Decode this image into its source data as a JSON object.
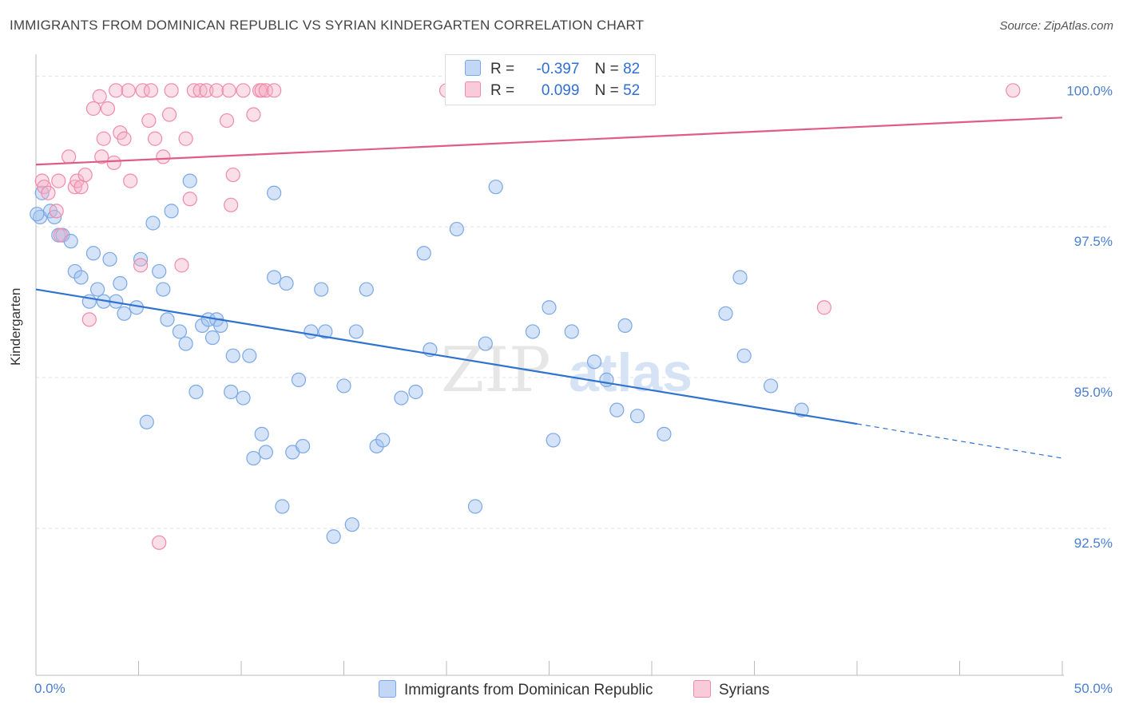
{
  "title": "IMMIGRANTS FROM DOMINICAN REPUBLIC VS SYRIAN KINDERGARTEN CORRELATION CHART",
  "source": "Source: ZipAtlas.com",
  "watermark": "ZIPatlas",
  "legend": {
    "rows": [
      {
        "r_label": "R =",
        "r_value": "-0.397",
        "n_label": "N =",
        "n_value": "82"
      },
      {
        "r_label": "R =",
        "r_value": "0.099",
        "n_label": "N =",
        "n_value": "52"
      }
    ]
  },
  "chart_data": {
    "type": "scatter",
    "xlabel": "",
    "ylabel": "Kindergarten",
    "xlim": [
      0,
      50
    ],
    "ylim": [
      90.3,
      100.6
    ],
    "x_tick_labels": [
      {
        "value": 0,
        "label": "0.0%"
      },
      {
        "value": 50,
        "label": "50.0%"
      }
    ],
    "y_tick_labels": [
      {
        "value": 100.0,
        "label": "100.0%"
      },
      {
        "value": 97.5,
        "label": "97.5%"
      },
      {
        "value": 95.0,
        "label": "95.0%"
      },
      {
        "value": 92.5,
        "label": "92.5%"
      }
    ],
    "grid": true,
    "colors": {
      "dominican": "#7aa8e6",
      "syrian": "#f08aaa",
      "dominican_line": "#2f72d0",
      "syrian_line": "#e05c87",
      "tick": "#4a7fd0"
    },
    "series": [
      {
        "name": "Immigrants from Dominican Republic",
        "trend": {
          "x_start": 0,
          "y_start": 96.7,
          "x_end": 40,
          "y_end": 94.47,
          "dash_to_x": 50,
          "dash_to_y": 93.9
        },
        "points": [
          [
            0.2,
            97.9
          ],
          [
            0.3,
            98.3
          ],
          [
            0.7,
            98.0
          ],
          [
            0.9,
            97.9
          ],
          [
            1.1,
            97.6
          ],
          [
            1.3,
            97.6
          ],
          [
            1.7,
            97.5
          ],
          [
            1.9,
            97.0
          ],
          [
            2.2,
            96.9
          ],
          [
            2.6,
            96.5
          ],
          [
            2.8,
            97.3
          ],
          [
            3.0,
            96.7
          ],
          [
            3.3,
            96.5
          ],
          [
            3.6,
            97.2
          ],
          [
            3.9,
            96.5
          ],
          [
            4.1,
            96.8
          ],
          [
            4.3,
            96.3
          ],
          [
            4.9,
            96.4
          ],
          [
            5.1,
            97.2
          ],
          [
            5.4,
            94.5
          ],
          [
            5.7,
            97.8
          ],
          [
            6.0,
            97.0
          ],
          [
            6.2,
            96.7
          ],
          [
            6.4,
            96.2
          ],
          [
            6.6,
            98.0
          ],
          [
            7.0,
            96.0
          ],
          [
            7.3,
            95.8
          ],
          [
            7.5,
            98.5
          ],
          [
            7.8,
            95.0
          ],
          [
            8.1,
            96.1
          ],
          [
            8.4,
            96.2
          ],
          [
            8.6,
            95.9
          ],
          [
            8.8,
            96.2
          ],
          [
            9.0,
            96.1
          ],
          [
            9.5,
            95.0
          ],
          [
            9.6,
            95.6
          ],
          [
            10.1,
            94.9
          ],
          [
            10.4,
            95.6
          ],
          [
            10.6,
            93.9
          ],
          [
            11.0,
            94.3
          ],
          [
            11.2,
            94.0
          ],
          [
            11.6,
            96.9
          ],
          [
            11.6,
            98.3
          ],
          [
            12.0,
            93.1
          ],
          [
            12.2,
            96.8
          ],
          [
            12.5,
            94.0
          ],
          [
            12.8,
            95.2
          ],
          [
            13.0,
            94.1
          ],
          [
            13.4,
            96.0
          ],
          [
            13.9,
            96.7
          ],
          [
            14.1,
            96.0
          ],
          [
            14.5,
            92.6
          ],
          [
            15.0,
            95.1
          ],
          [
            15.4,
            92.8
          ],
          [
            15.6,
            96.0
          ],
          [
            16.1,
            96.7
          ],
          [
            16.6,
            94.1
          ],
          [
            16.9,
            94.2
          ],
          [
            17.8,
            94.9
          ],
          [
            18.5,
            95.0
          ],
          [
            18.9,
            97.3
          ],
          [
            19.2,
            95.7
          ],
          [
            20.5,
            97.7
          ],
          [
            21.4,
            93.1
          ],
          [
            21.9,
            95.8
          ],
          [
            22.4,
            98.4
          ],
          [
            24.2,
            96.0
          ],
          [
            25.0,
            96.4
          ],
          [
            25.2,
            94.2
          ],
          [
            26.1,
            96.0
          ],
          [
            27.2,
            95.5
          ],
          [
            27.8,
            95.2
          ],
          [
            28.3,
            94.7
          ],
          [
            28.7,
            96.1
          ],
          [
            29.3,
            94.6
          ],
          [
            30.6,
            94.3
          ],
          [
            33.6,
            96.3
          ],
          [
            34.3,
            96.9
          ],
          [
            34.5,
            95.6
          ],
          [
            35.8,
            95.1
          ],
          [
            37.3,
            94.7
          ],
          [
            0.05,
            97.95
          ]
        ]
      },
      {
        "name": "Syrians",
        "trend": {
          "x_start": 0,
          "y_start": 98.77,
          "x_end": 50,
          "y_end": 99.55
        },
        "points": [
          [
            0.3,
            98.5
          ],
          [
            0.4,
            98.4
          ],
          [
            0.6,
            98.3
          ],
          [
            1.0,
            98.0
          ],
          [
            1.1,
            98.5
          ],
          [
            1.2,
            97.6
          ],
          [
            1.6,
            98.9
          ],
          [
            1.9,
            98.4
          ],
          [
            2.0,
            98.5
          ],
          [
            2.2,
            98.4
          ],
          [
            2.4,
            98.6
          ],
          [
            2.6,
            96.2
          ],
          [
            2.8,
            99.7
          ],
          [
            3.1,
            99.9
          ],
          [
            3.2,
            98.9
          ],
          [
            3.3,
            99.2
          ],
          [
            3.5,
            99.7
          ],
          [
            3.8,
            98.8
          ],
          [
            3.9,
            100.0
          ],
          [
            4.1,
            99.3
          ],
          [
            4.3,
            99.2
          ],
          [
            4.6,
            98.5
          ],
          [
            4.5,
            100.0
          ],
          [
            5.1,
            97.1
          ],
          [
            5.2,
            100.0
          ],
          [
            5.5,
            99.5
          ],
          [
            5.6,
            100.0
          ],
          [
            5.8,
            99.2
          ],
          [
            6.0,
            92.5
          ],
          [
            6.2,
            98.9
          ],
          [
            6.6,
            100.0
          ],
          [
            6.5,
            99.6
          ],
          [
            7.1,
            97.1
          ],
          [
            7.3,
            99.2
          ],
          [
            7.5,
            98.2
          ],
          [
            7.7,
            100.0
          ],
          [
            8.0,
            100.0
          ],
          [
            8.3,
            100.0
          ],
          [
            8.8,
            100.0
          ],
          [
            9.3,
            99.5
          ],
          [
            9.4,
            100.0
          ],
          [
            9.5,
            98.1
          ],
          [
            9.6,
            98.6
          ],
          [
            10.1,
            100.0
          ],
          [
            10.6,
            99.6
          ],
          [
            10.9,
            100.0
          ],
          [
            11.0,
            100.0
          ],
          [
            11.2,
            100.0
          ],
          [
            11.6,
            100.0
          ],
          [
            20.0,
            100.0
          ],
          [
            38.4,
            96.4
          ],
          [
            47.6,
            100.0
          ]
        ]
      }
    ]
  },
  "bottom_legend": [
    {
      "label": "Immigrants from Dominican Republic"
    },
    {
      "label": "Syrians"
    }
  ]
}
